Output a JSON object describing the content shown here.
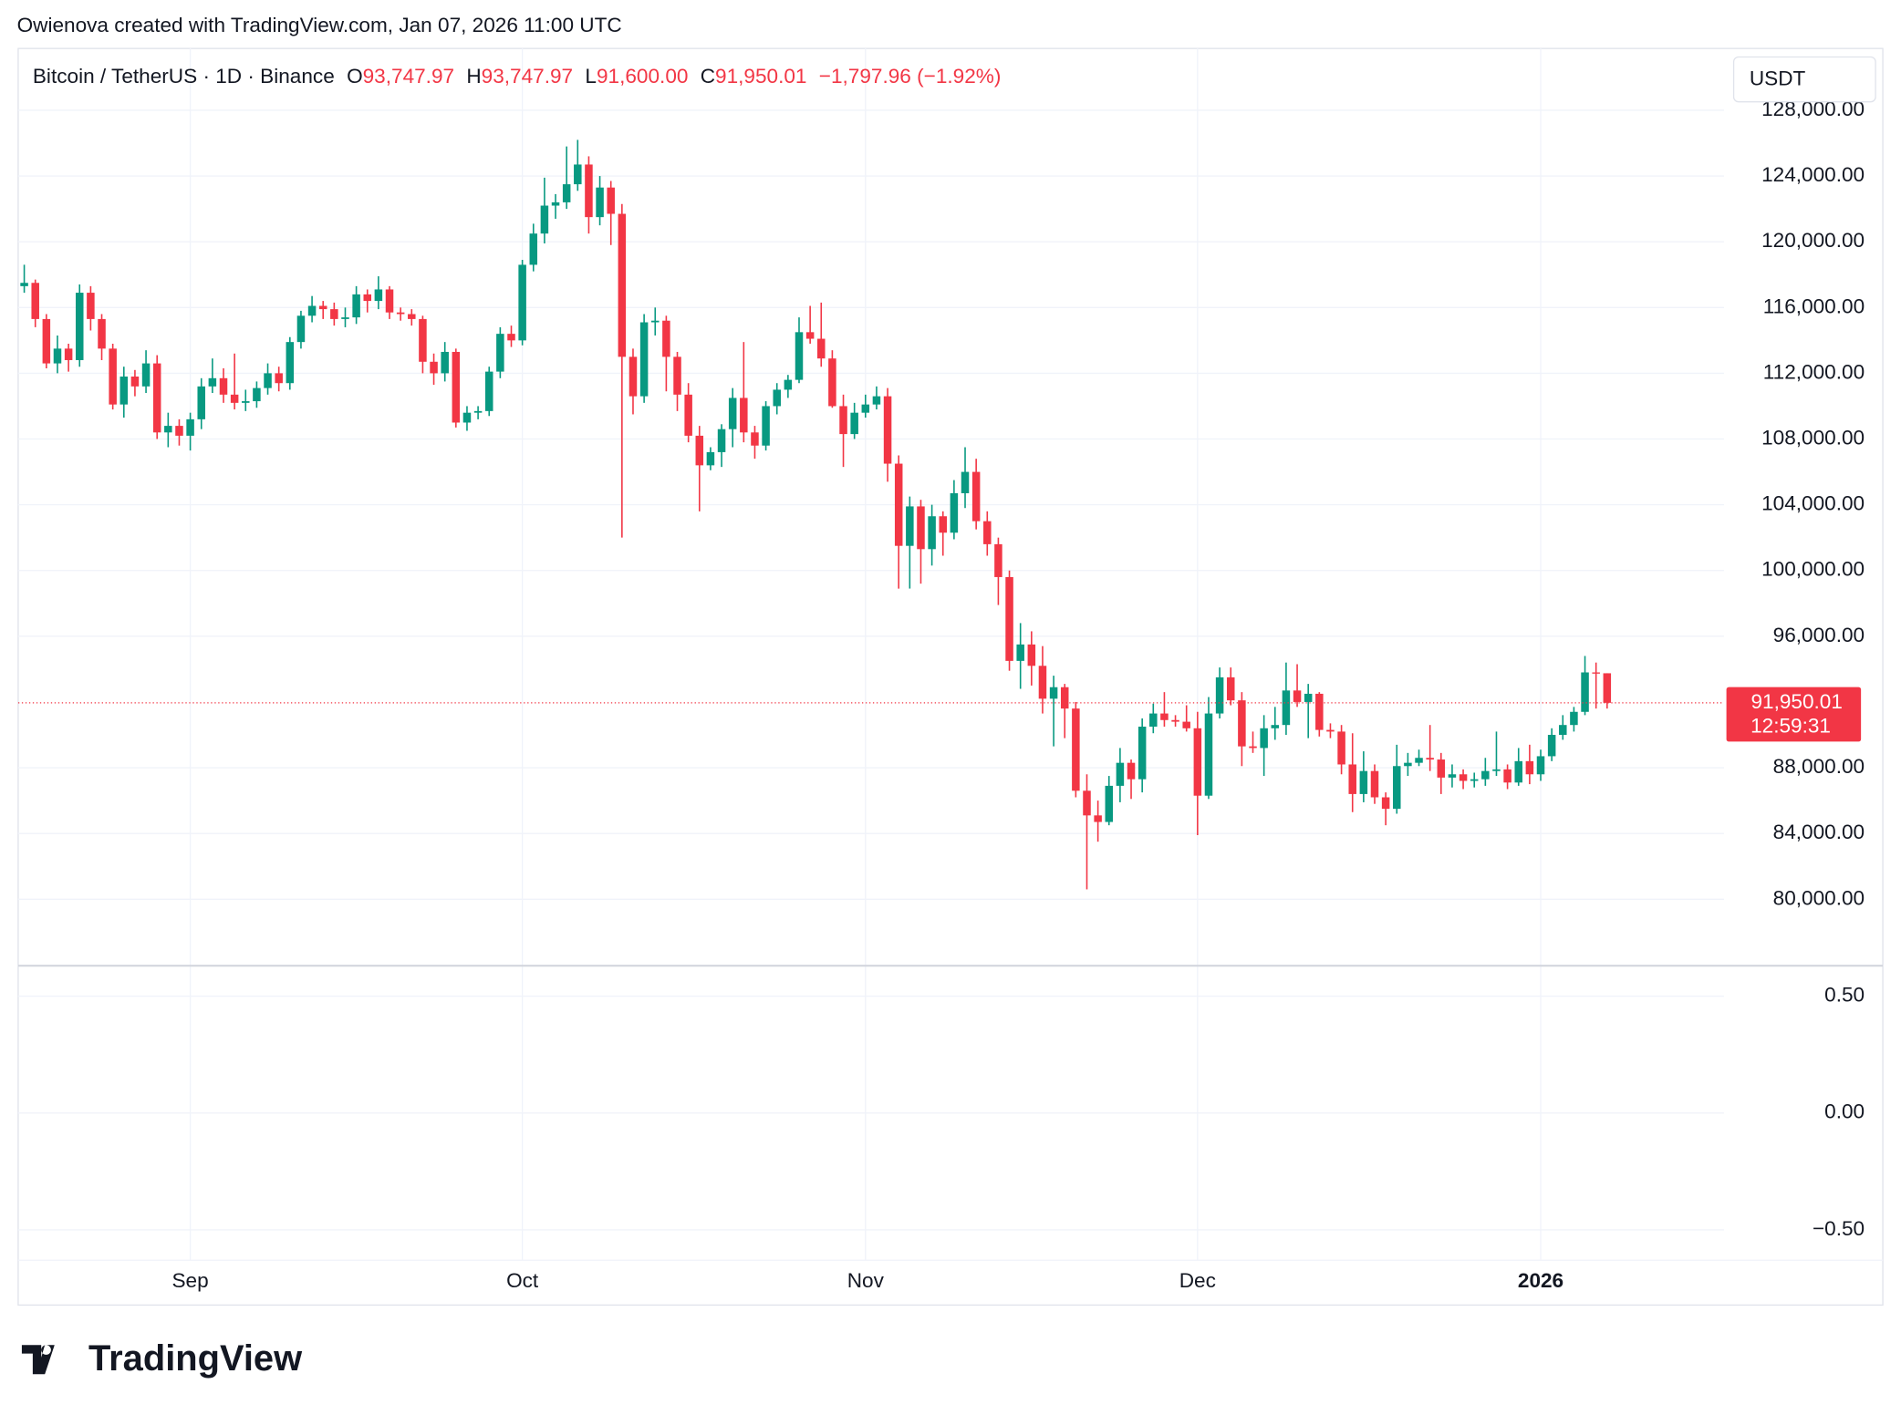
{
  "header": {
    "attribution": "Owienova created with TradingView.com, Jan 07, 2026 11:00 UTC"
  },
  "chart_data": [
    {
      "type": "candlestick",
      "title": "Bitcoin / TetherUS · 1D · Binance",
      "ohlc_legend": [
        {
          "key": "O",
          "text": "93,747.97"
        },
        {
          "key": "H",
          "text": "93,747.97"
        },
        {
          "key": "L",
          "text": "91,600.00"
        },
        {
          "key": "C",
          "text": "91,950.01"
        }
      ],
      "change_label": "−1,797.96 (−1.92%)",
      "currency": "USDT",
      "up_color": "#089981",
      "down_color": "#f23645",
      "grid": true,
      "open": [
        117300,
        117500,
        115300,
        112600,
        113500,
        112800,
        116900,
        115300,
        113500,
        110100,
        111800,
        111200,
        112600,
        108400,
        108800,
        108200,
        109200,
        111200,
        111700,
        110700,
        110200,
        110300,
        111100,
        112000,
        111400,
        113900,
        115500,
        116100,
        115900,
        115300,
        115400,
        116800,
        116400,
        117100,
        115700,
        115600,
        115300,
        112700,
        112000,
        113300,
        109000,
        109600,
        109700,
        112100,
        114400,
        114000,
        118600,
        120500,
        122200,
        122400,
        123500,
        124700,
        121500,
        123300,
        121700,
        113000,
        110600,
        115100,
        115200,
        113000,
        110700,
        108200,
        106400,
        107200,
        108600,
        110500,
        108400,
        107600,
        110000,
        111000,
        111600,
        114500,
        114100,
        112900,
        110000,
        108300,
        109600,
        110100,
        110600,
        106500,
        101500,
        103900,
        101300,
        103300,
        102300,
        104700,
        106000,
        103000,
        101600,
        99600,
        94500,
        95500,
        94200,
        92200,
        92900,
        91600,
        86600,
        85100,
        84700,
        86900,
        88300,
        87300,
        90500,
        91300,
        90900,
        90800,
        90400,
        86300,
        91300,
        93500,
        92100,
        89300,
        89200,
        90400,
        90600,
        92700,
        92000,
        92500,
        90300,
        90200,
        88200,
        86400,
        87800,
        86200,
        85500,
        88100,
        88300,
        88600,
        88500,
        87400,
        87600,
        87200,
        87300,
        87800,
        87900,
        87100,
        88400,
        87600,
        88700,
        90000,
        90600,
        91400,
        93800,
        93747.97
      ],
      "high": [
        118600,
        117700,
        115600,
        114300,
        113800,
        117400,
        117300,
        115600,
        113800,
        112400,
        112200,
        113400,
        113100,
        109600,
        109200,
        109600,
        111700,
        112900,
        112300,
        113200,
        111000,
        111500,
        112600,
        112400,
        114200,
        115800,
        116700,
        116400,
        116300,
        116000,
        117300,
        117100,
        117900,
        117300,
        116000,
        115900,
        115500,
        113200,
        113900,
        113500,
        110000,
        110000,
        112400,
        114800,
        114900,
        118900,
        121100,
        123900,
        122900,
        125800,
        126200,
        125200,
        124000,
        123700,
        122300,
        113500,
        115600,
        116000,
        115500,
        113300,
        111400,
        108800,
        107500,
        108900,
        111100,
        113900,
        108800,
        110300,
        111400,
        111900,
        115400,
        116100,
        116300,
        113400,
        110700,
        110200,
        110700,
        111200,
        111100,
        107000,
        104500,
        104300,
        104000,
        103600,
        105500,
        107500,
        106800,
        103600,
        102000,
        100000,
        96800,
        96300,
        95400,
        93600,
        93100,
        92000,
        87600,
        86000,
        87500,
        89200,
        88500,
        91000,
        91900,
        92600,
        91200,
        91800,
        91400,
        92300,
        94100,
        94100,
        92600,
        90200,
        91200,
        91700,
        94400,
        94300,
        93100,
        92600,
        90700,
        90600,
        90100,
        89000,
        88200,
        86500,
        89400,
        88900,
        89100,
        90600,
        88900,
        88200,
        87900,
        87700,
        88600,
        90200,
        88200,
        89200,
        89400,
        89100,
        90400,
        91200,
        91700,
        94800,
        94400,
        93747.97
      ],
      "low": [
        116900,
        114800,
        112300,
        112000,
        112100,
        112400,
        114600,
        112800,
        109800,
        109300,
        110600,
        110800,
        108000,
        107500,
        107600,
        107300,
        108600,
        110800,
        110200,
        109800,
        109700,
        109900,
        110700,
        110900,
        111000,
        113500,
        115100,
        115300,
        114900,
        114800,
        115000,
        115700,
        115900,
        115300,
        115200,
        114900,
        112000,
        111300,
        111500,
        108700,
        108500,
        109200,
        109400,
        111700,
        113600,
        113700,
        118200,
        119900,
        121400,
        122000,
        123100,
        120500,
        121000,
        119800,
        102000,
        109500,
        110200,
        114300,
        110900,
        109700,
        107800,
        103600,
        106100,
        106300,
        107500,
        107800,
        106800,
        107300,
        109500,
        110500,
        111400,
        113800,
        112400,
        109900,
        106300,
        108000,
        109300,
        109800,
        105400,
        98900,
        98900,
        99200,
        100300,
        100900,
        101900,
        103800,
        102500,
        100900,
        97900,
        93900,
        92800,
        93000,
        91300,
        89300,
        89800,
        86200,
        80600,
        83500,
        84500,
        85900,
        86100,
        86500,
        90100,
        90500,
        90500,
        90200,
        83900,
        86100,
        91000,
        91800,
        88100,
        88900,
        87500,
        89700,
        90000,
        91700,
        89800,
        89900,
        89800,
        87600,
        85300,
        85900,
        85800,
        84500,
        85200,
        87500,
        88100,
        87800,
        86400,
        86800,
        86700,
        86800,
        86900,
        87500,
        86700,
        86900,
        87000,
        87200,
        88400,
        89700,
        90200,
        91200,
        91600,
        91600
      ],
      "close": [
        117500,
        115300,
        112600,
        113500,
        112800,
        116900,
        115300,
        113500,
        110100,
        111800,
        111200,
        112600,
        108400,
        108800,
        108200,
        109200,
        111200,
        111700,
        110700,
        110200,
        110300,
        111100,
        112000,
        111400,
        113900,
        115500,
        116100,
        115900,
        115300,
        115400,
        116800,
        116400,
        117100,
        115700,
        115600,
        115300,
        112700,
        112000,
        113300,
        109000,
        109600,
        109700,
        112100,
        114400,
        114000,
        118600,
        120500,
        122200,
        122400,
        123500,
        124700,
        121500,
        123300,
        121700,
        113000,
        110600,
        115100,
        115200,
        113000,
        110700,
        108200,
        106400,
        107200,
        108600,
        110500,
        108400,
        107600,
        110000,
        111000,
        111600,
        114500,
        114100,
        112900,
        110000,
        108300,
        109600,
        110100,
        110600,
        106500,
        101500,
        103900,
        101300,
        103300,
        102300,
        104700,
        106000,
        103000,
        101600,
        99600,
        94500,
        95500,
        94200,
        92200,
        92900,
        91600,
        86600,
        85100,
        84700,
        86900,
        88300,
        87300,
        90500,
        91300,
        90900,
        90800,
        90400,
        86300,
        91300,
        93500,
        92100,
        89300,
        89200,
        90400,
        90600,
        92700,
        92000,
        92500,
        90300,
        90200,
        88200,
        86400,
        87800,
        86200,
        85500,
        88100,
        88300,
        88600,
        88500,
        87400,
        87600,
        87200,
        87300,
        87800,
        87900,
        87100,
        88400,
        87600,
        88700,
        90000,
        90600,
        91400,
        93800,
        93747.97,
        91950.01
      ],
      "xticks": [
        {
          "value": 15,
          "label": "Sep"
        },
        {
          "value": 45,
          "label": "Oct"
        },
        {
          "value": 76,
          "label": "Nov"
        },
        {
          "value": 106,
          "label": "Dec"
        },
        {
          "value": 137,
          "label": "2026"
        }
      ],
      "ylim": [
        75950,
        131760
      ],
      "yticks": [
        {
          "value": 80000,
          "label": "80,000.00"
        },
        {
          "value": 84000,
          "label": "84,000.00"
        },
        {
          "value": 88000,
          "label": "88,000.00"
        },
        {
          "value": 96000,
          "label": "96,000.00"
        },
        {
          "value": 100000,
          "label": "100,000.00"
        },
        {
          "value": 104000,
          "label": "104,000.00"
        },
        {
          "value": 108000,
          "label": "108,000.00"
        },
        {
          "value": 112000,
          "label": "112,000.00"
        },
        {
          "value": 116000,
          "label": "116,000.00"
        },
        {
          "value": 120000,
          "label": "120,000.00"
        },
        {
          "value": 124000,
          "label": "124,000.00"
        },
        {
          "value": 128000,
          "label": "128,000.00"
        }
      ],
      "last_price": {
        "value": 91950.01,
        "label": "91,950.01"
      },
      "countdown": "12:59:31"
    },
    {
      "type": "line",
      "series": [],
      "ylim": [
        -0.63,
        0.63
      ],
      "grid": true,
      "yticks": [
        {
          "value": 0.5,
          "label": "0.50"
        },
        {
          "value": 0,
          "label": "0.00"
        },
        {
          "value": -0.5,
          "label": "−0.50"
        }
      ]
    }
  ],
  "footer": {
    "logo": "TradingView"
  }
}
